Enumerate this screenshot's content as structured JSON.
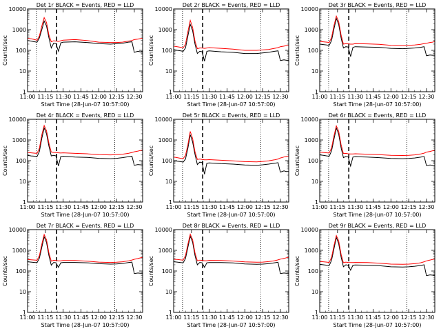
{
  "chart_data": {
    "type": "line",
    "layout": "3x3 grid",
    "x_tick_labels": [
      "11:00",
      "11:15",
      "11:30",
      "11:45",
      "12:00",
      "12:15",
      "12:30"
    ],
    "x_ticks_minutes": [
      0,
      15,
      30,
      45,
      60,
      75,
      90
    ],
    "xlim_minutes": [
      0,
      97
    ],
    "xlabel": "Start Time (28-Jun-07 10:57:00)",
    "ylabel": "Counts/sec",
    "y_scale": "log",
    "ylim": [
      1,
      10000
    ],
    "y_tick_labels": [
      "1",
      "10",
      "100",
      "1000",
      "10000"
    ],
    "series_colors": {
      "events": "#000000",
      "lld": "#ff0000"
    },
    "vlines": [
      {
        "style": "dotted",
        "x_minutes": 7.5
      },
      {
        "style": "dashed",
        "x_minutes": 24.5
      },
      {
        "style": "dotted",
        "x_minutes": 73.5
      }
    ],
    "panels": [
      {
        "title": "Det 1r BLACK = Events, RED = LLD",
        "vline_x": [
          7.5,
          24.5,
          73.5
        ],
        "x": [
          0,
          3,
          6,
          8,
          10,
          12,
          14,
          16,
          18,
          20,
          22,
          24,
          26,
          28,
          30,
          40,
          50,
          60,
          70,
          75,
          80,
          85,
          88,
          90,
          93,
          95,
          97
        ],
        "events": [
          300,
          280,
          260,
          250,
          400,
          1000,
          2600,
          1500,
          400,
          130,
          220,
          210,
          90,
          230,
          250,
          260,
          240,
          210,
          200,
          210,
          220,
          250,
          260,
          80,
          90,
          85,
          85
        ],
        "lld": [
          380,
          360,
          330,
          310,
          500,
          1500,
          3800,
          2200,
          550,
          260,
          290,
          280,
          270,
          290,
          310,
          330,
          300,
          250,
          240,
          240,
          250,
          280,
          300,
          330,
          350,
          370,
          390
        ]
      },
      {
        "title": "Det 2r BLACK = Events, RED = LLD",
        "vline_x": [
          7.5,
          24.5,
          73.5
        ],
        "x": [
          0,
          3,
          6,
          8,
          10,
          12,
          14,
          16,
          18,
          20,
          22,
          24,
          26,
          28,
          30,
          40,
          50,
          60,
          70,
          75,
          80,
          85,
          88,
          90,
          93,
          95,
          97
        ],
        "events": [
          110,
          100,
          95,
          90,
          130,
          500,
          1800,
          900,
          200,
          70,
          90,
          85,
          30,
          90,
          95,
          85,
          80,
          70,
          70,
          75,
          80,
          90,
          95,
          32,
          35,
          33,
          33
        ],
        "lld": [
          160,
          150,
          140,
          130,
          200,
          800,
          2800,
          1300,
          280,
          120,
          130,
          130,
          125,
          130,
          135,
          125,
          115,
          100,
          100,
          105,
          110,
          125,
          135,
          150,
          160,
          170,
          180
        ]
      },
      {
        "title": "Det 3r BLACK = Events, RED = LLD",
        "vline_x": [
          7.5,
          24.5,
          73.5
        ],
        "x": [
          0,
          3,
          6,
          8,
          10,
          12,
          14,
          16,
          18,
          20,
          22,
          24,
          26,
          28,
          30,
          40,
          50,
          60,
          70,
          75,
          80,
          85,
          88,
          90,
          93,
          95,
          97
        ],
        "events": [
          200,
          190,
          180,
          175,
          300,
          1100,
          3500,
          1800,
          400,
          130,
          150,
          145,
          50,
          140,
          150,
          145,
          140,
          125,
          120,
          125,
          130,
          140,
          150,
          55,
          60,
          58,
          58
        ],
        "lld": [
          270,
          260,
          250,
          240,
          420,
          1600,
          4500,
          2500,
          560,
          200,
          210,
          205,
          200,
          200,
          210,
          205,
          195,
          175,
          170,
          175,
          180,
          195,
          210,
          220,
          240,
          250,
          265
        ]
      },
      {
        "title": "Det 4r BLACK = Events, RED = LLD",
        "vline_x": [
          7.5,
          24.5,
          73.5
        ],
        "x": [
          0,
          3,
          6,
          8,
          10,
          12,
          14,
          16,
          18,
          20,
          22,
          24,
          26,
          28,
          30,
          40,
          50,
          60,
          70,
          75,
          80,
          85,
          88,
          90,
          93,
          95,
          97
        ],
        "events": [
          180,
          170,
          165,
          160,
          280,
          1200,
          3800,
          2000,
          500,
          170,
          180,
          170,
          55,
          160,
          165,
          150,
          145,
          130,
          125,
          130,
          140,
          155,
          165,
          60,
          65,
          63,
          63
        ],
        "lld": [
          250,
          240,
          230,
          225,
          400,
          1800,
          5000,
          2800,
          700,
          260,
          250,
          245,
          240,
          235,
          240,
          225,
          215,
          195,
          190,
          195,
          205,
          225,
          250,
          270,
          290,
          310,
          330
        ]
      },
      {
        "title": "Det 5r BLACK = Events, RED = LLD",
        "vline_x": [
          7.5,
          24.5,
          73.5
        ],
        "x": [
          0,
          3,
          6,
          8,
          10,
          12,
          14,
          16,
          18,
          20,
          22,
          24,
          26,
          28,
          30,
          40,
          50,
          60,
          70,
          75,
          80,
          85,
          88,
          90,
          93,
          95,
          97
        ],
        "events": [
          100,
          95,
          90,
          85,
          120,
          400,
          1800,
          800,
          200,
          65,
          85,
          80,
          22,
          75,
          78,
          72,
          68,
          62,
          60,
          63,
          68,
          75,
          80,
          28,
          32,
          30,
          30
        ],
        "lld": [
          150,
          140,
          130,
          125,
          180,
          600,
          2600,
          1200,
          270,
          115,
          120,
          115,
          110,
          110,
          112,
          105,
          98,
          90,
          88,
          92,
          98,
          110,
          120,
          135,
          150,
          160,
          170
        ]
      },
      {
        "title": "Det 6r BLACK = Events, RED = LLD",
        "vline_x": [
          7.5,
          24.5,
          73.5
        ],
        "x": [
          0,
          3,
          6,
          8,
          10,
          12,
          14,
          16,
          18,
          20,
          22,
          24,
          26,
          28,
          30,
          40,
          50,
          60,
          70,
          75,
          80,
          85,
          88,
          90,
          93,
          95,
          97
        ],
        "events": [
          190,
          180,
          170,
          165,
          300,
          1100,
          3800,
          1900,
          420,
          140,
          160,
          150,
          55,
          150,
          155,
          150,
          140,
          128,
          125,
          128,
          135,
          148,
          160,
          58,
          62,
          60,
          60
        ],
        "lld": [
          260,
          250,
          240,
          235,
          420,
          1600,
          4800,
          2700,
          600,
          220,
          225,
          215,
          210,
          210,
          215,
          205,
          195,
          180,
          178,
          182,
          190,
          210,
          230,
          260,
          280,
          300,
          320
        ]
      },
      {
        "title": "Det 7r BLACK = Events, RED = LLD",
        "vline_x": [
          7.5,
          24.5,
          73.5
        ],
        "x": [
          0,
          3,
          6,
          8,
          10,
          12,
          14,
          16,
          18,
          20,
          22,
          24,
          26,
          28,
          30,
          40,
          50,
          60,
          70,
          75,
          80,
          85,
          88,
          90,
          93,
          95,
          97
        ],
        "events": [
          280,
          270,
          260,
          255,
          420,
          1400,
          4500,
          2400,
          550,
          190,
          260,
          250,
          150,
          250,
          260,
          260,
          250,
          225,
          215,
          220,
          230,
          255,
          270,
          75,
          80,
          78,
          78
        ],
        "lld": [
          360,
          350,
          340,
          330,
          560,
          2000,
          5800,
          3200,
          750,
          300,
          330,
          320,
          310,
          310,
          320,
          320,
          300,
          270,
          260,
          265,
          280,
          310,
          340,
          370,
          400,
          430,
          460
        ]
      },
      {
        "title": "Det 8r BLACK = Events, RED = LLD",
        "vline_x": [
          7.5,
          24.5,
          73.5
        ],
        "x": [
          0,
          3,
          6,
          8,
          10,
          12,
          14,
          16,
          18,
          20,
          22,
          24,
          26,
          28,
          30,
          40,
          50,
          60,
          70,
          75,
          80,
          85,
          88,
          90,
          93,
          95,
          97
        ],
        "events": [
          280,
          270,
          255,
          250,
          400,
          1400,
          4800,
          2500,
          560,
          200,
          260,
          250,
          150,
          250,
          255,
          255,
          245,
          220,
          210,
          215,
          225,
          250,
          265,
          75,
          80,
          78,
          78
        ],
        "lld": [
          370,
          360,
          345,
          335,
          560,
          2000,
          6000,
          3300,
          760,
          310,
          335,
          325,
          315,
          315,
          325,
          320,
          305,
          275,
          265,
          270,
          285,
          315,
          345,
          375,
          405,
          435,
          465
        ]
      },
      {
        "title": "Det 9r BLACK = Events, RED = LLD",
        "vline_x": [
          7.5,
          24.5,
          73.5
        ],
        "x": [
          0,
          3,
          6,
          8,
          10,
          12,
          14,
          16,
          18,
          20,
          22,
          24,
          26,
          28,
          30,
          40,
          50,
          60,
          70,
          75,
          80,
          85,
          88,
          90,
          93,
          95,
          97
        ],
        "events": [
          210,
          200,
          190,
          185,
          330,
          1200,
          4200,
          2100,
          480,
          160,
          200,
          190,
          110,
          190,
          195,
          190,
          180,
          160,
          155,
          160,
          170,
          185,
          200,
          60,
          65,
          63,
          63
        ],
        "lld": [
          290,
          280,
          270,
          260,
          460,
          1700,
          5200,
          2900,
          650,
          250,
          270,
          260,
          255,
          255,
          260,
          255,
          240,
          215,
          210,
          215,
          225,
          250,
          280,
          310,
          340,
          360,
          380
        ]
      }
    ]
  }
}
